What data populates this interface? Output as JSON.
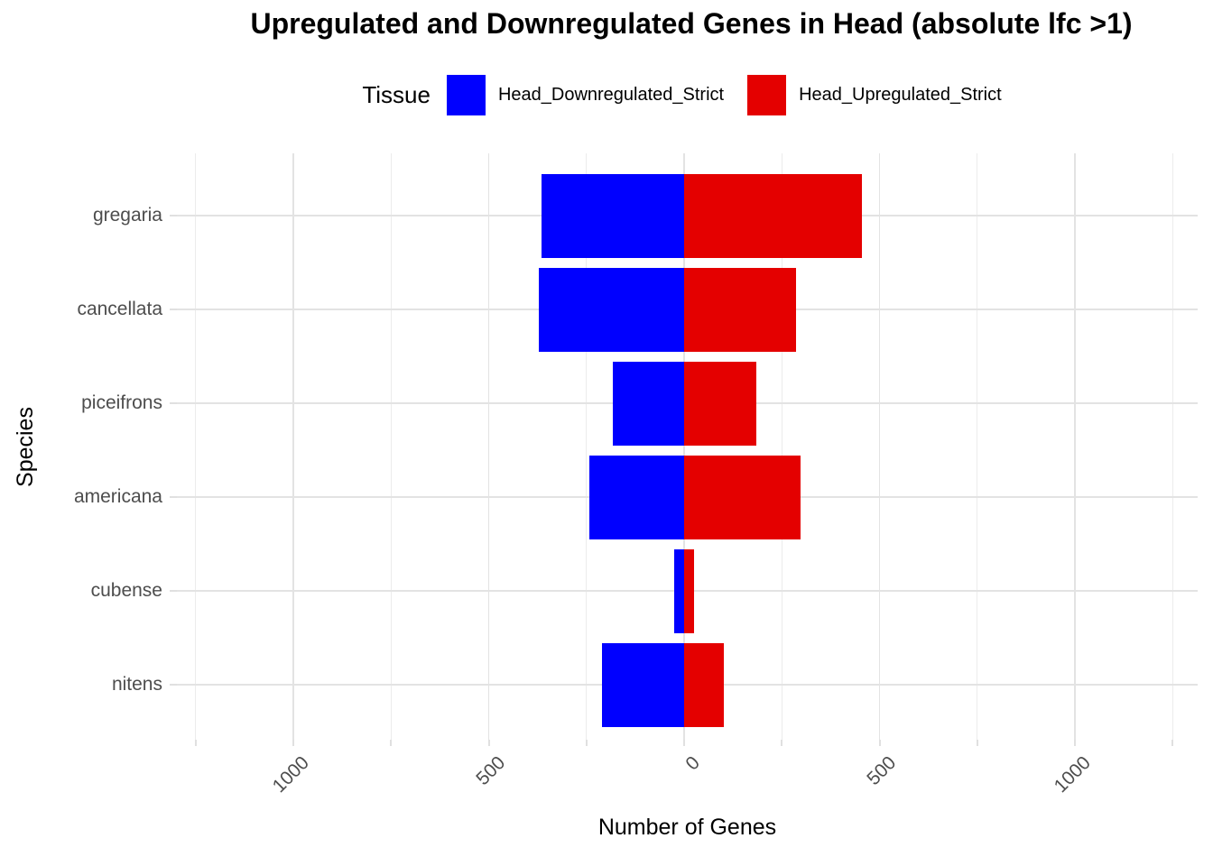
{
  "title": "Upregulated and Downregulated Genes in Head (absolute lfc >1)",
  "legend": {
    "title": "Tissue",
    "items": [
      {
        "label": "Head_Downregulated_Strict",
        "color": "#0000FF"
      },
      {
        "label": "Head_Upregulated_Strict",
        "color": "#E40000"
      }
    ]
  },
  "chart_data": {
    "type": "bar",
    "orientation": "horizontal_diverging",
    "title": "Upregulated and Downregulated Genes in Head (absolute lfc >1)",
    "xlabel": "Number of Genes",
    "ylabel": "Species",
    "categories": [
      "gregaria",
      "cancellata",
      "piceifrons",
      "americana",
      "cubense",
      "nitens"
    ],
    "series": [
      {
        "name": "Head_Downregulated_Strict",
        "color": "#0000FF",
        "values": [
          -366,
          -371,
          -182,
          -243,
          -26,
          -211
        ]
      },
      {
        "name": "Head_Upregulated_Strict",
        "color": "#E40000",
        "values": [
          456,
          286,
          184,
          298,
          26,
          101
        ]
      }
    ],
    "xlim": [
      -1298,
      1314
    ],
    "x_major_ticks": [
      -1000,
      -500,
      0,
      500,
      1000
    ],
    "x_tick_labels": [
      "1000",
      "500",
      "0",
      "500",
      "1000"
    ],
    "gridline_step": 250,
    "grid": true,
    "legend_position": "top"
  },
  "colors": {
    "grid_major": "#e3e3e3",
    "grid_minor": "#ececec",
    "tick_mark": "#e0e0e0",
    "tick_text": "#4d4d4d",
    "axis_title": "#000000",
    "background": "#ffffff"
  }
}
